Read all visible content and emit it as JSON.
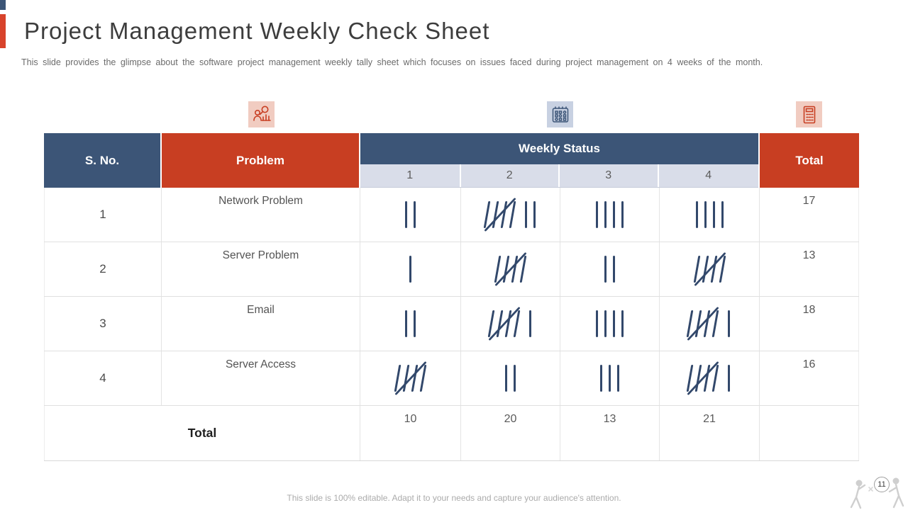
{
  "slide": {
    "title": "Project Management Weekly Check Sheet",
    "subtitle": "This slide provides  the glimpse about the software  project management  weekly tally sheet which focuses  on issues faced  during  project management  on 4 weeks of the month."
  },
  "header_icons": [
    {
      "name": "analysis-icon",
      "background": "#F1CCC1",
      "color": "#C83E22"
    },
    {
      "name": "calendar-icon",
      "background": "#C8D1E2",
      "color": "#3C5577"
    },
    {
      "name": "calculator-icon",
      "background": "#F1CCC1",
      "color": "#C83E22"
    }
  ],
  "table": {
    "col_headers": {
      "s_no": "S. No.",
      "problem": "Problem",
      "weekly_status": "Weekly Status",
      "weeks": [
        "1",
        "2",
        "3",
        "4"
      ],
      "total": "Total"
    },
    "rows": [
      {
        "s_no": "1",
        "problem": "Network Problem",
        "tally_groups": [
          [
            2
          ],
          [
            5,
            2
          ],
          [
            4
          ],
          [
            4
          ]
        ],
        "total": "17"
      },
      {
        "s_no": "2",
        "problem": "Server Problem",
        "tally_groups": [
          [
            1
          ],
          [
            5
          ],
          [
            2
          ],
          [
            5
          ]
        ],
        "total": "13"
      },
      {
        "s_no": "3",
        "problem": "Email",
        "tally_groups": [
          [
            2
          ],
          [
            5,
            1
          ],
          [
            4
          ],
          [
            5,
            1
          ]
        ],
        "total": "18"
      },
      {
        "s_no": "4",
        "problem": "Server Access",
        "tally_groups": [
          [
            5
          ],
          [
            2
          ],
          [
            3
          ],
          [
            5,
            1
          ]
        ],
        "total": "16"
      }
    ],
    "total_row": {
      "label": "Total",
      "values": [
        "10",
        "20",
        "13",
        "21"
      ]
    }
  },
  "footer": {
    "note": "This slide is 100% editable. Adapt it to your needs and capture your audience's attention.",
    "page_number": "11"
  },
  "colors": {
    "navy": "#3C5577",
    "red": "#C83E22",
    "week_subheader": "#D9DDE9",
    "tally": "#32486B",
    "icon_pink_bg": "#F1CCC1",
    "icon_blue_bg": "#C8D1E2"
  },
  "chart_data": {
    "type": "table",
    "title": "Project Management Weekly Check Sheet",
    "columns": [
      "S. No.",
      "Problem",
      "Week 1",
      "Week 2",
      "Week 3",
      "Week 4",
      "Total"
    ],
    "rows": [
      [
        1,
        "Network Problem",
        2,
        7,
        4,
        4,
        17
      ],
      [
        2,
        "Server Problem",
        1,
        5,
        2,
        5,
        13
      ],
      [
        3,
        "Email",
        2,
        6,
        4,
        6,
        18
      ],
      [
        4,
        "Server Access",
        5,
        2,
        3,
        6,
        16
      ]
    ],
    "column_totals": [
      10,
      20,
      13,
      21
    ]
  }
}
